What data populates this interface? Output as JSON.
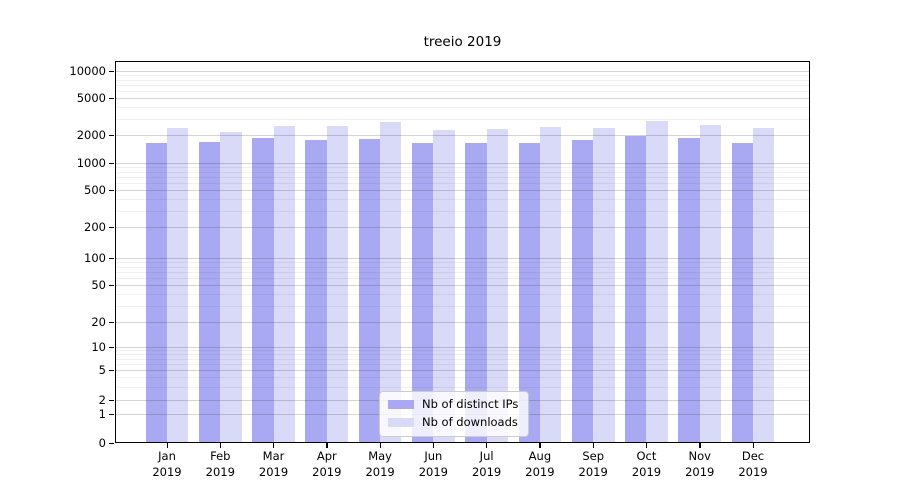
{
  "chart_data": {
    "type": "bar",
    "title": "treeio 2019",
    "categories": [
      "Jan\n2019",
      "Feb\n2019",
      "Mar\n2019",
      "Apr\n2019",
      "May\n2019",
      "Jun\n2019",
      "Jul\n2019",
      "Aug\n2019",
      "Sep\n2019",
      "Oct\n2019",
      "Nov\n2019",
      "Dec\n2019"
    ],
    "series": [
      {
        "name": "Nb of distinct IPs",
        "color": "#a8a8f3",
        "values": [
          1650,
          1690,
          1870,
          1780,
          1820,
          1650,
          1650,
          1650,
          1780,
          1960,
          1870,
          1650
        ]
      },
      {
        "name": "Nb of downloads",
        "color": "#d9d9f8",
        "values": [
          2400,
          2180,
          2530,
          2510,
          2750,
          2290,
          2340,
          2410,
          2400,
          2800,
          2590,
          2400
        ]
      }
    ],
    "xlabel": "",
    "ylabel": "",
    "yscale": "symlog",
    "yticks": [
      0,
      1,
      2,
      5,
      10,
      20,
      50,
      100,
      200,
      500,
      1000,
      2000,
      5000,
      10000
    ],
    "ylim": [
      0,
      13000
    ],
    "grid": true,
    "legend_position": "lower-center"
  },
  "colors": {
    "background": "#ffffff",
    "spine": "#000000",
    "major_grid": "#cccccc",
    "minor_grid": "#ececec"
  }
}
